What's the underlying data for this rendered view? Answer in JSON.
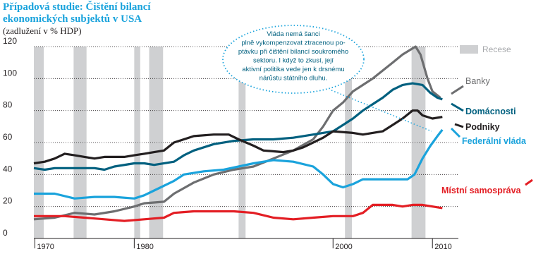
{
  "chart_data": {
    "type": "line",
    "title_lines": [
      "Případová studie: Čištění bilancí",
      "ekonomických subjektů v USA"
    ],
    "subtitle": "(zadlužení v % HDP)",
    "annotation_lines": [
      "Vláda nemá šanci",
      "plně vykompenzovat ztracenou po-",
      "ptávku při čištění bilancí soukromého",
      "sektoru. I když to zkusí, její",
      "aktivní politika vede jen k drsnému",
      "nárůstu státního dluhu."
    ],
    "recession_label": "Recese",
    "recession_color": "#cfd0d2",
    "recessions": [
      [
        1969.9,
        1970.9
      ],
      [
        1973.9,
        1975.2
      ],
      [
        1980.0,
        1980.6
      ],
      [
        1981.5,
        1982.9
      ],
      [
        1990.5,
        1991.2
      ],
      [
        2001.2,
        2001.9
      ],
      [
        2007.9,
        2009.3
      ]
    ],
    "xlim": [
      1969.9,
      2011.9
    ],
    "ylim": [
      0,
      120
    ],
    "xticks": [
      1970,
      1980,
      2000,
      2010
    ],
    "yticks": [
      0,
      20,
      40,
      60,
      80,
      100,
      120
    ],
    "grid": true,
    "series": [
      {
        "name": "Banky",
        "color": "#6d6e70",
        "x": [
          1969.9,
          1972,
          1974,
          1976,
          1978,
          1980,
          1981,
          1983,
          1984,
          1986,
          1988,
          1990,
          1992,
          1994,
          1996,
          1998,
          1999,
          2000,
          2001,
          2002,
          2003,
          2004,
          2005,
          2006,
          2007,
          2008.3,
          2008.8,
          2009.5,
          2010,
          2010.8
        ],
        "values": [
          12,
          13,
          16,
          15,
          17,
          20,
          22,
          23,
          28,
          35,
          40,
          43,
          45,
          50,
          55,
          62,
          70,
          80,
          85,
          92,
          96,
          100,
          105,
          110,
          115,
          120,
          115,
          100,
          92,
          88
        ]
      },
      {
        "name": "Domácnosti",
        "color": "#00607f",
        "x": [
          1969.9,
          1971,
          1972,
          1976,
          1977,
          1978,
          1980,
          1981,
          1982,
          1984,
          1985,
          1986,
          1988,
          1990,
          1992,
          1994,
          1996,
          1998,
          2000,
          2001,
          2002,
          2003,
          2004,
          2005,
          2006,
          2007,
          2008,
          2009,
          2009.8,
          2010.5,
          2011
        ],
        "values": [
          44,
          43,
          44,
          44,
          43,
          45,
          47,
          47,
          46,
          48,
          52,
          55,
          59,
          61,
          62,
          62,
          63,
          65,
          67,
          71,
          75,
          80,
          84,
          88,
          93,
          96,
          97,
          96,
          91,
          88,
          87
        ]
      },
      {
        "name": "Podniky",
        "color": "#231f20",
        "x": [
          1969.9,
          1971,
          1972,
          1973,
          1974,
          1975,
          1976,
          1977,
          1979,
          1980,
          1981,
          1982,
          1983,
          1984,
          1986,
          1988,
          1989.5,
          1990.5,
          1992,
          1993,
          1995,
          1996,
          1997,
          1998,
          1999,
          2000,
          2002,
          2003,
          2005,
          2006,
          2007,
          2008,
          2008.5,
          2009,
          2010,
          2011
        ],
        "values": [
          47,
          48,
          50,
          53,
          52,
          51,
          50,
          51,
          51,
          52,
          53,
          54,
          55,
          60,
          64,
          65,
          65,
          62,
          58,
          55,
          54,
          55,
          57,
          60,
          63,
          67,
          66,
          65,
          67,
          71,
          75,
          80,
          80,
          77,
          75,
          76
        ]
      },
      {
        "name": "Federální vláda",
        "color": "#1aa3dc",
        "x": [
          1969.9,
          1972,
          1974,
          1976,
          1978,
          1980,
          1981,
          1982,
          1984,
          1985,
          1987,
          1989,
          1992,
          1994,
          1996,
          1998,
          1999,
          2000,
          2001,
          2002,
          2003,
          2006,
          2007.5,
          2008.2,
          2009,
          2009.8,
          2010.5,
          2011
        ],
        "values": [
          28,
          28,
          25,
          26,
          26,
          25,
          27,
          30,
          36,
          40,
          42,
          43,
          47,
          49,
          48,
          45,
          40,
          34,
          32,
          34,
          37,
          37,
          37,
          40,
          50,
          58,
          64,
          68
        ]
      },
      {
        "name": "Místní samospráva",
        "color": "#e31e24",
        "x": [
          1969.9,
          1973,
          1975,
          1977,
          1979,
          1981,
          1983,
          1984,
          1986,
          1990,
          1992,
          1994,
          1996,
          1998,
          2000,
          2002,
          2003,
          2004,
          2006,
          2007,
          2008,
          2009,
          2010,
          2011
        ],
        "values": [
          14,
          14,
          13,
          12,
          11,
          12,
          13,
          16,
          17,
          17,
          16,
          13,
          12,
          13,
          14,
          14,
          16,
          21,
          21,
          20,
          21,
          21,
          20,
          19
        ]
      }
    ]
  }
}
